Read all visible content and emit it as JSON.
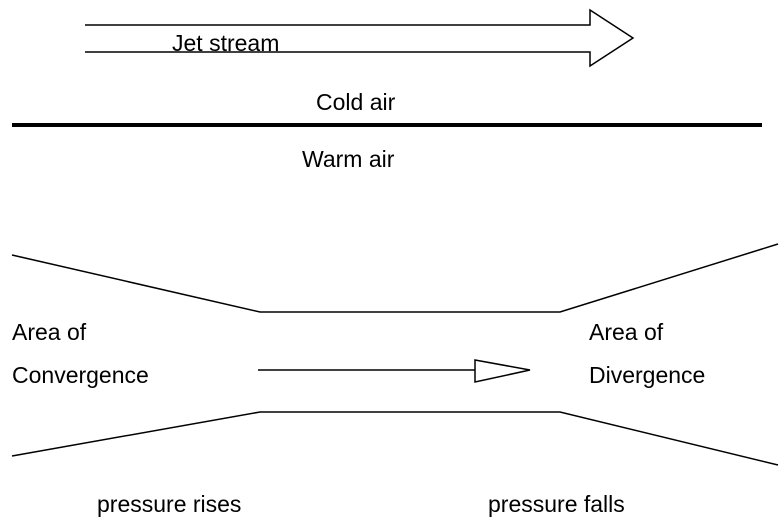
{
  "labels": {
    "jet_stream": "Jet stream",
    "cold_air": "Cold air",
    "warm_air": "Warm air",
    "convergence": [
      "Area of",
      "Convergence"
    ],
    "divergence": [
      "Area of",
      "Divergence"
    ],
    "pressure_rises": "pressure rises",
    "pressure_falls": "pressure falls"
  }
}
